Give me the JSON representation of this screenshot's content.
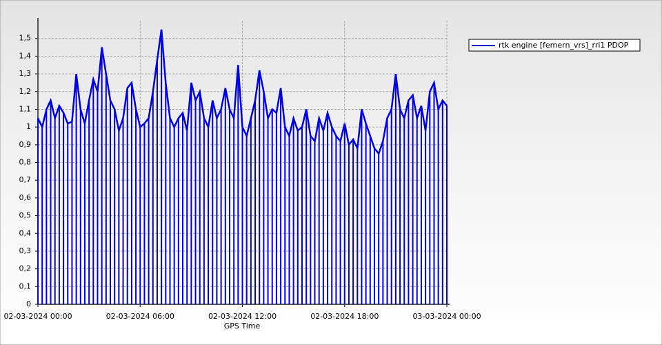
{
  "chart_data": {
    "type": "line",
    "xlabel": "GPS Time",
    "x": [
      "02-03-2024 00:00",
      "02-03-2024 00:15",
      "02-03-2024 00:30",
      "02-03-2024 00:45",
      "02-03-2024 01:00",
      "02-03-2024 01:15",
      "02-03-2024 01:30",
      "02-03-2024 01:45",
      "02-03-2024 02:00",
      "02-03-2024 02:15",
      "02-03-2024 02:30",
      "02-03-2024 02:45",
      "02-03-2024 03:00",
      "02-03-2024 03:15",
      "02-03-2024 03:30",
      "02-03-2024 03:45",
      "02-03-2024 04:00",
      "02-03-2024 04:15",
      "02-03-2024 04:30",
      "02-03-2024 04:45",
      "02-03-2024 05:00",
      "02-03-2024 05:15",
      "02-03-2024 05:30",
      "02-03-2024 05:45",
      "02-03-2024 06:00",
      "02-03-2024 06:15",
      "02-03-2024 06:30",
      "02-03-2024 06:45",
      "02-03-2024 07:00",
      "02-03-2024 07:15",
      "02-03-2024 07:30",
      "02-03-2024 07:45",
      "02-03-2024 08:00",
      "02-03-2024 08:15",
      "02-03-2024 08:30",
      "02-03-2024 08:45",
      "02-03-2024 09:00",
      "02-03-2024 09:15",
      "02-03-2024 09:30",
      "02-03-2024 09:45",
      "02-03-2024 10:00",
      "02-03-2024 10:15",
      "02-03-2024 10:30",
      "02-03-2024 10:45",
      "02-03-2024 11:00",
      "02-03-2024 11:15",
      "02-03-2024 11:30",
      "02-03-2024 11:45",
      "02-03-2024 12:00",
      "02-03-2024 12:15",
      "02-03-2024 12:30",
      "02-03-2024 12:45",
      "02-03-2024 13:00",
      "02-03-2024 13:15",
      "02-03-2024 13:30",
      "02-03-2024 13:45",
      "02-03-2024 14:00",
      "02-03-2024 14:15",
      "02-03-2024 14:30",
      "02-03-2024 14:45",
      "02-03-2024 15:00",
      "02-03-2024 15:15",
      "02-03-2024 15:30",
      "02-03-2024 15:45",
      "02-03-2024 16:00",
      "02-03-2024 16:15",
      "02-03-2024 16:30",
      "02-03-2024 16:45",
      "02-03-2024 17:00",
      "02-03-2024 17:15",
      "02-03-2024 17:30",
      "02-03-2024 17:45",
      "02-03-2024 18:00",
      "02-03-2024 18:15",
      "02-03-2024 18:30",
      "02-03-2024 18:45",
      "02-03-2024 19:00",
      "02-03-2024 19:15",
      "02-03-2024 19:30",
      "02-03-2024 19:45",
      "02-03-2024 20:00",
      "02-03-2024 20:15",
      "02-03-2024 20:30",
      "02-03-2024 20:45",
      "02-03-2024 21:00",
      "02-03-2024 21:15",
      "02-03-2024 21:30",
      "02-03-2024 21:45",
      "02-03-2024 22:00",
      "02-03-2024 22:15",
      "02-03-2024 22:30",
      "02-03-2024 22:45",
      "02-03-2024 23:00",
      "02-03-2024 23:15",
      "02-03-2024 23:30",
      "02-03-2024 23:45",
      "03-03-2024 00:00"
    ],
    "series": [
      {
        "name": "rtk engine [femern_vrs]_rri1 PDOP",
        "color": "#0000e0",
        "values": [
          1.05,
          1.0,
          1.1,
          1.15,
          1.05,
          1.12,
          1.08,
          1.02,
          1.03,
          1.3,
          1.1,
          1.02,
          1.15,
          1.27,
          1.2,
          1.45,
          1.3,
          1.15,
          1.1,
          0.98,
          1.05,
          1.22,
          1.25,
          1.1,
          1.0,
          1.02,
          1.05,
          1.2,
          1.38,
          1.55,
          1.25,
          1.05,
          1.0,
          1.05,
          1.08,
          0.98,
          1.25,
          1.15,
          1.2,
          1.05,
          1.0,
          1.15,
          1.05,
          1.1,
          1.22,
          1.1,
          1.05,
          1.35,
          1.0,
          0.95,
          1.05,
          1.15,
          1.32,
          1.2,
          1.05,
          1.1,
          1.08,
          1.22,
          1.0,
          0.95,
          1.05,
          0.98,
          1.0,
          1.1,
          0.95,
          0.92,
          1.05,
          0.98,
          1.08,
          1.0,
          0.95,
          0.92,
          1.02,
          0.9,
          0.93,
          0.88,
          1.1,
          1.02,
          0.95,
          0.88,
          0.85,
          0.92,
          1.05,
          1.1,
          1.3,
          1.1,
          1.05,
          1.15,
          1.18,
          1.05,
          1.12,
          0.98,
          1.2,
          1.25,
          1.1,
          1.15,
          1.12
        ]
      }
    ],
    "drop_lines": true,
    "xlim": [
      "02-03-2024 00:00",
      "03-03-2024 00:00"
    ],
    "xticks": [
      "02-03-2024 00:00",
      "02-03-2024 06:00",
      "02-03-2024 12:00",
      "02-03-2024 18:00",
      "03-03-2024 00:00"
    ],
    "ylim": [
      0,
      1.6
    ],
    "yticks": [
      0,
      {
        "value": 0.1,
        "label": "0,1"
      },
      {
        "value": 0.2,
        "label": "0,2"
      },
      {
        "value": 0.3,
        "label": "0,3"
      },
      {
        "value": 0.4,
        "label": "0,4"
      },
      {
        "value": 0.5,
        "label": "0,5"
      },
      {
        "value": 0.6,
        "label": "0,6"
      },
      {
        "value": 0.7,
        "label": "0,7"
      },
      {
        "value": 0.8,
        "label": "0,8"
      },
      {
        "value": 0.9,
        "label": "0,9"
      },
      1,
      {
        "value": 1.1,
        "label": "1,1"
      },
      {
        "value": 1.2,
        "label": "1,2"
      },
      {
        "value": 1.3,
        "label": "1,3"
      },
      {
        "value": 1.4,
        "label": "1,4"
      },
      {
        "value": 1.5,
        "label": "1,5"
      }
    ],
    "grid": true,
    "legend": "top-right"
  }
}
